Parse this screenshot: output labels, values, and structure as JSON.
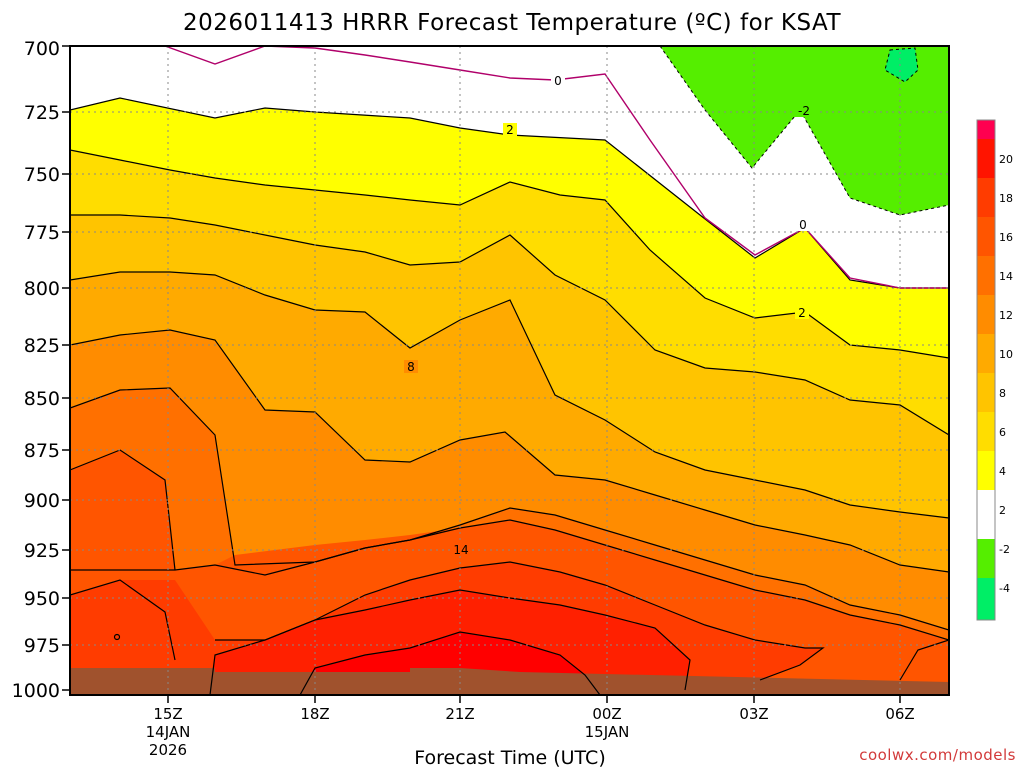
{
  "chart_data": {
    "type": "heatmap",
    "title": "2026011413 HRRR Forecast Temperature (ºC) for KSAT",
    "xlabel": "Forecast Time (UTC)",
    "ylabel": "",
    "credit": "coolwx.com/models",
    "y_axis": {
      "reversed": true,
      "range": [
        700,
        1000
      ],
      "ticks": [
        "700",
        "725",
        "750",
        "775",
        "800",
        "825",
        "850",
        "875",
        "900",
        "925",
        "950",
        "975",
        "1000"
      ]
    },
    "x_axis": {
      "ticks": [
        {
          "label": "15Z",
          "sub1": "14JAN",
          "sub2": "2026"
        },
        {
          "label": "18Z",
          "sub1": "",
          "sub2": ""
        },
        {
          "label": "21Z",
          "sub1": "",
          "sub2": ""
        },
        {
          "label": "00Z",
          "sub1": "15JAN",
          "sub2": ""
        },
        {
          "label": "03Z",
          "sub1": "",
          "sub2": ""
        },
        {
          "label": "06Z",
          "sub1": "",
          "sub2": ""
        }
      ]
    },
    "colorbar": {
      "labels": [
        "20",
        "18",
        "16",
        "14",
        "12",
        "10",
        "8",
        "6",
        "4",
        "2",
        "-2",
        "-4"
      ]
    },
    "contour_labels": [
      "0",
      "2",
      "-2",
      "0",
      "2",
      "8",
      "14"
    ],
    "grid": true
  }
}
